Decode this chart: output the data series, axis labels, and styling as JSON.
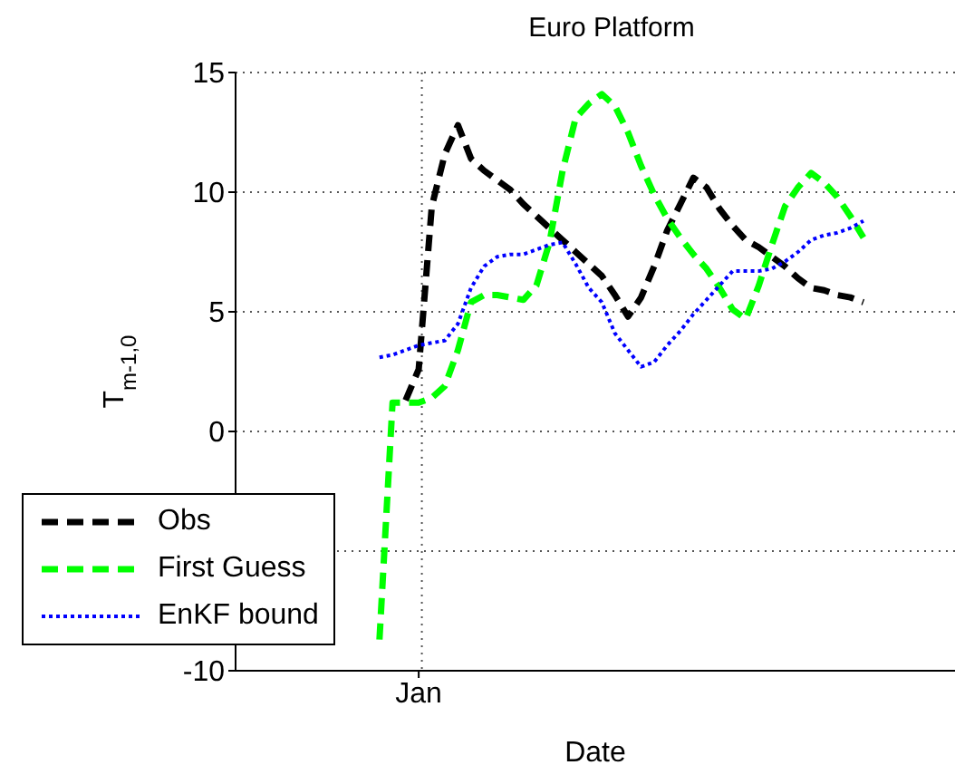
{
  "chart_data": {
    "type": "line",
    "title": "Euro Platform",
    "xlabel": "Date",
    "ylabel": "T$_{m-1,0}$",
    "categories": [
      null,
      null,
      null,
      null,
      null,
      null,
      null,
      null,
      null,
      null,
      null,
      null,
      null,
      null,
      "Jan",
      null,
      null,
      null,
      null,
      null,
      null,
      null,
      null,
      null,
      null,
      null,
      null,
      null,
      null,
      null,
      null,
      null,
      null,
      null,
      null,
      null,
      null,
      null,
      null,
      null,
      null,
      null,
      null,
      null,
      null,
      null,
      null,
      null,
      null,
      null,
      null,
      null,
      null,
      null,
      null,
      null
    ],
    "ylim": [
      -10,
      15
    ],
    "yticks": [
      -10,
      {
        "value": -5,
        "label": null
      },
      0,
      5,
      10,
      15
    ],
    "grid": true,
    "legend": "bottom left",
    "series": [
      {
        "name": "Obs",
        "color": "#000000",
        "line_style": "dashed",
        "values": [
          null,
          null,
          null,
          null,
          null,
          null,
          null,
          null,
          null,
          null,
          null,
          null,
          null,
          1.3,
          2.6,
          9.4,
          11.6,
          12.8,
          11.4,
          10.9,
          10.5,
          10.1,
          9.5,
          9.0,
          8.5,
          8.0,
          7.5,
          7.0,
          6.5,
          5.7,
          4.8,
          5.6,
          6.9,
          8.4,
          9.5,
          10.6,
          10.2,
          9.3,
          8.6,
          8.0,
          7.7,
          7.3,
          6.9,
          6.4,
          6.0,
          5.9,
          5.7,
          5.6,
          5.4,
          null,
          null,
          null,
          null,
          null,
          null,
          null
        ]
      },
      {
        "name": "First Guess",
        "color": "#00ff00",
        "line_style": "dashed",
        "values": [
          null,
          null,
          null,
          null,
          null,
          null,
          null,
          null,
          null,
          null,
          null,
          -8.7,
          1.2,
          1.2,
          1.2,
          1.4,
          1.9,
          3.4,
          5.4,
          5.7,
          5.7,
          5.6,
          5.5,
          6.1,
          7.9,
          10.9,
          13.1,
          13.7,
          14.1,
          13.6,
          12.5,
          11.1,
          9.9,
          8.9,
          8.1,
          7.4,
          6.8,
          6.0,
          5.1,
          4.7,
          6.1,
          7.8,
          9.4,
          10.2,
          10.8,
          10.4,
          9.8,
          9.0,
          8.1,
          null,
          null,
          null,
          null,
          null,
          null,
          null
        ]
      },
      {
        "name": "EnKF bound",
        "color": "#0000ff",
        "line_style": "dotted",
        "values": [
          null,
          null,
          null,
          null,
          null,
          null,
          null,
          null,
          null,
          null,
          null,
          3.1,
          3.2,
          3.4,
          3.6,
          3.7,
          3.8,
          4.5,
          6.0,
          6.9,
          7.3,
          7.4,
          7.4,
          7.6,
          7.8,
          7.9,
          7.0,
          6.0,
          5.4,
          4.1,
          3.4,
          2.7,
          2.9,
          3.6,
          4.2,
          4.9,
          5.5,
          6.1,
          6.7,
          6.7,
          6.7,
          6.8,
          7.1,
          7.5,
          8.0,
          8.2,
          8.3,
          8.5,
          8.8,
          null,
          null,
          null,
          null,
          null,
          null,
          null
        ]
      }
    ]
  }
}
